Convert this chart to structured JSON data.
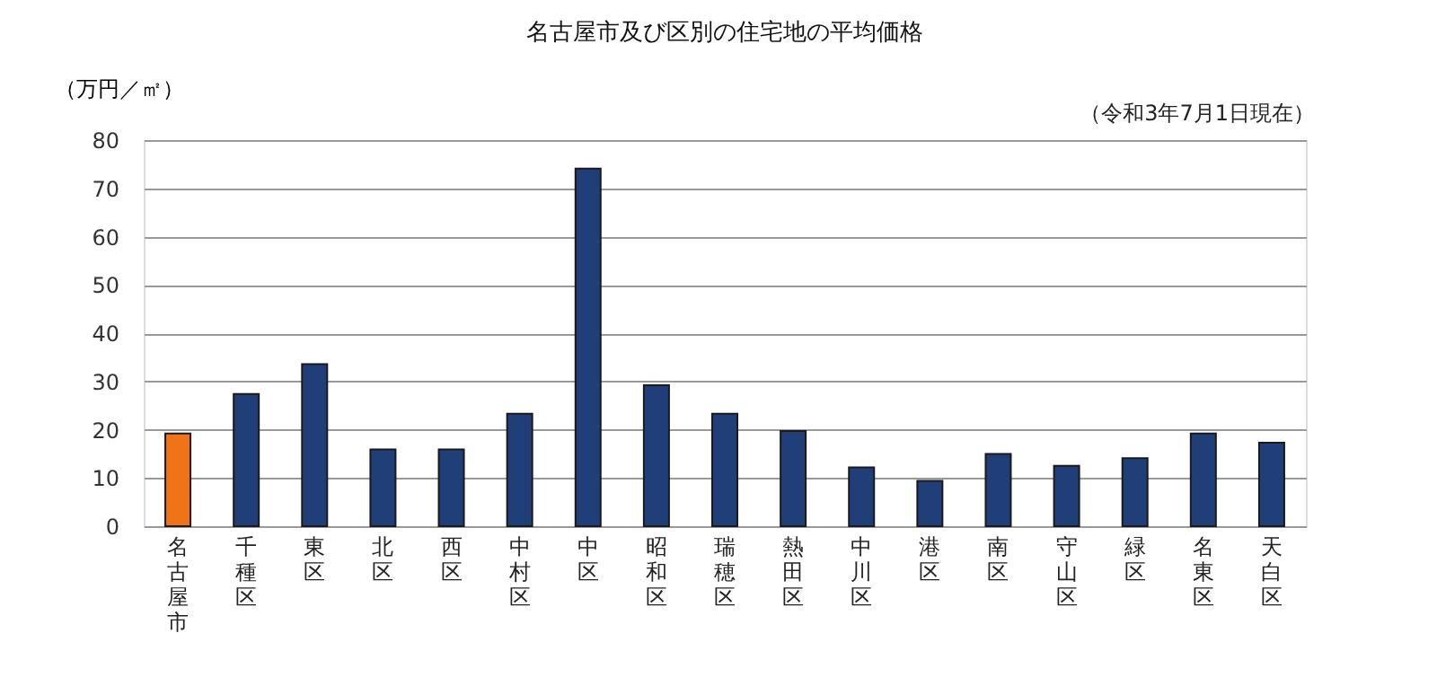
{
  "chart_data": {
    "type": "bar",
    "title": "名古屋市及び区別の住宅地の平均価格",
    "ylabel": "（万円／㎡）",
    "annotations": [
      "（令和3年7月1日現在）"
    ],
    "categories": [
      "名古屋市",
      "千種区",
      "東区",
      "北区",
      "西区",
      "中村区",
      "中区",
      "昭和区",
      "瑞穂区",
      "熱田区",
      "中川区",
      "港区",
      "南区",
      "守山区",
      "緑区",
      "名東区",
      "天白区"
    ],
    "values": [
      19.2,
      27.4,
      33.6,
      15.9,
      15.9,
      23.3,
      74.1,
      29.2,
      23.3,
      19.7,
      12.2,
      9.4,
      15.0,
      12.5,
      14.1,
      19.2,
      17.3
    ],
    "colors": [
      "#f07318",
      "#203f78",
      "#203f78",
      "#203f78",
      "#203f78",
      "#203f78",
      "#203f78",
      "#203f78",
      "#203f78",
      "#203f78",
      "#203f78",
      "#203f78",
      "#203f78",
      "#203f78",
      "#203f78",
      "#203f78",
      "#203f78"
    ],
    "ylim": [
      0,
      80
    ],
    "yticks": [
      0,
      10,
      20,
      30,
      40,
      50,
      60,
      70,
      80
    ],
    "grid": "y"
  }
}
